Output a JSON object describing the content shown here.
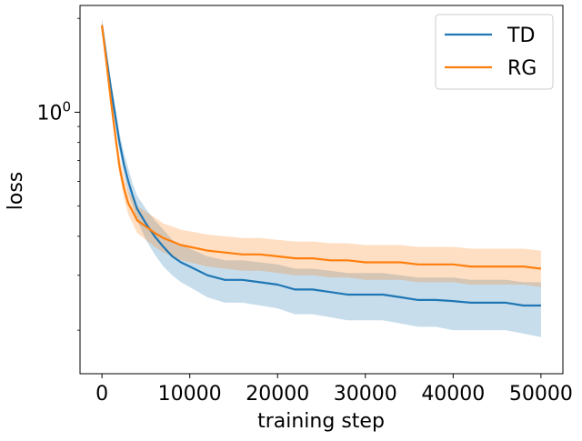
{
  "chart_data": {
    "type": "line",
    "xlabel": "training step",
    "ylabel": "loss",
    "yscale": "log",
    "xlim": [
      -2500,
      52500
    ],
    "ylim": [
      0.145,
      2.2
    ],
    "grid": false,
    "legend_position": "top-right",
    "x_ticks": [
      0,
      10000,
      20000,
      30000,
      40000,
      50000
    ],
    "x_tick_labels": [
      "0",
      "10000",
      "20000",
      "30000",
      "40000",
      "50000"
    ],
    "y_major_ticks": [
      1.0
    ],
    "y_major_tick_label_base": "10",
    "y_major_tick_label_exponent": "0",
    "y_minor_ticks": [
      0.2,
      0.3,
      0.4,
      0.5,
      0.6,
      0.7,
      0.8,
      0.9,
      2.0
    ],
    "series": [
      {
        "name": "TD",
        "color": "#1f77b4",
        "x": [
          0,
          500,
          1000,
          1500,
          2000,
          2500,
          3000,
          3500,
          4000,
          5000,
          6000,
          7000,
          8000,
          9000,
          10000,
          12000,
          14000,
          16000,
          18000,
          20000,
          22000,
          24000,
          26000,
          28000,
          30000,
          32000,
          34000,
          36000,
          38000,
          40000,
          42000,
          44000,
          46000,
          48000,
          50000
        ],
        "y": [
          1.9,
          1.5,
          1.2,
          0.98,
          0.8,
          0.68,
          0.6,
          0.54,
          0.49,
          0.44,
          0.4,
          0.37,
          0.345,
          0.33,
          0.32,
          0.3,
          0.29,
          0.29,
          0.285,
          0.28,
          0.27,
          0.27,
          0.265,
          0.26,
          0.26,
          0.26,
          0.255,
          0.25,
          0.25,
          0.248,
          0.245,
          0.245,
          0.245,
          0.24,
          0.24
        ],
        "lower": [
          1.8,
          1.42,
          1.13,
          0.92,
          0.75,
          0.63,
          0.55,
          0.5,
          0.45,
          0.39,
          0.35,
          0.32,
          0.3,
          0.285,
          0.275,
          0.255,
          0.245,
          0.245,
          0.24,
          0.235,
          0.225,
          0.225,
          0.22,
          0.215,
          0.215,
          0.215,
          0.21,
          0.205,
          0.205,
          0.2,
          0.2,
          0.2,
          0.2,
          0.195,
          0.19
        ],
        "upper": [
          2.0,
          1.6,
          1.28,
          1.05,
          0.86,
          0.74,
          0.66,
          0.59,
          0.54,
          0.49,
          0.45,
          0.42,
          0.39,
          0.375,
          0.365,
          0.345,
          0.335,
          0.335,
          0.33,
          0.325,
          0.315,
          0.315,
          0.31,
          0.305,
          0.305,
          0.305,
          0.3,
          0.295,
          0.295,
          0.295,
          0.29,
          0.29,
          0.29,
          0.285,
          0.285
        ]
      },
      {
        "name": "RG",
        "color": "#ff7f0e",
        "x": [
          0,
          500,
          1000,
          1500,
          2000,
          2500,
          3000,
          3500,
          4000,
          5000,
          6000,
          7000,
          8000,
          9000,
          10000,
          12000,
          14000,
          16000,
          18000,
          20000,
          22000,
          24000,
          26000,
          28000,
          30000,
          32000,
          34000,
          36000,
          38000,
          40000,
          42000,
          44000,
          46000,
          48000,
          50000
        ],
        "y": [
          1.9,
          1.45,
          1.1,
          0.85,
          0.67,
          0.57,
          0.51,
          0.48,
          0.45,
          0.43,
          0.41,
          0.395,
          0.385,
          0.375,
          0.37,
          0.36,
          0.355,
          0.35,
          0.35,
          0.345,
          0.34,
          0.34,
          0.335,
          0.335,
          0.33,
          0.33,
          0.33,
          0.325,
          0.325,
          0.325,
          0.32,
          0.32,
          0.32,
          0.32,
          0.315
        ],
        "lower": [
          1.8,
          1.38,
          1.04,
          0.8,
          0.63,
          0.53,
          0.47,
          0.44,
          0.41,
          0.39,
          0.37,
          0.355,
          0.345,
          0.335,
          0.33,
          0.32,
          0.315,
          0.31,
          0.31,
          0.305,
          0.3,
          0.3,
          0.295,
          0.295,
          0.29,
          0.29,
          0.29,
          0.285,
          0.285,
          0.285,
          0.28,
          0.28,
          0.28,
          0.28,
          0.275
        ],
        "upper": [
          2.0,
          1.52,
          1.16,
          0.9,
          0.72,
          0.62,
          0.56,
          0.53,
          0.5,
          0.48,
          0.46,
          0.44,
          0.43,
          0.42,
          0.415,
          0.405,
          0.4,
          0.395,
          0.395,
          0.39,
          0.385,
          0.385,
          0.38,
          0.38,
          0.375,
          0.375,
          0.375,
          0.37,
          0.37,
          0.37,
          0.365,
          0.365,
          0.365,
          0.365,
          0.36
        ]
      }
    ]
  }
}
